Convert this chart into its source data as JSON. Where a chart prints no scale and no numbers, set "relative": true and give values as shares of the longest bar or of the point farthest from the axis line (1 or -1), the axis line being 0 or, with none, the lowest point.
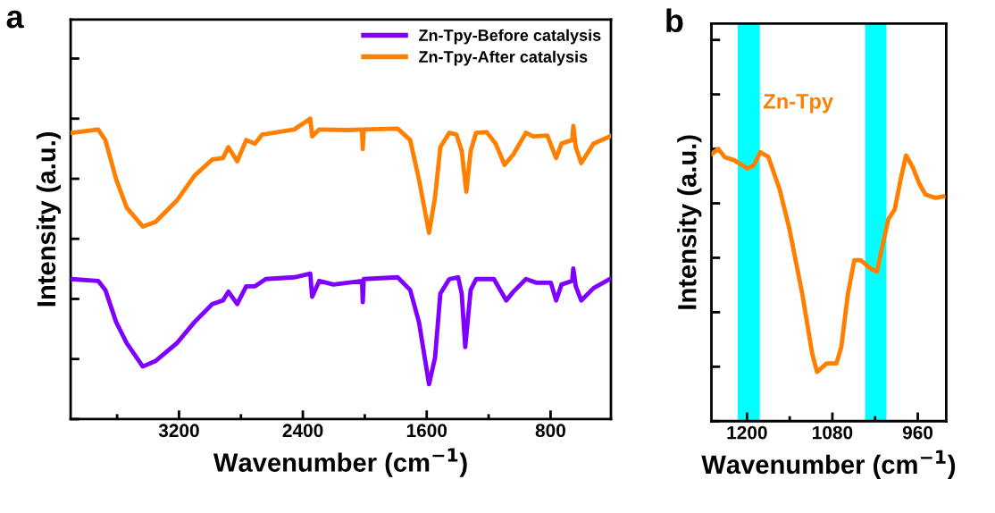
{
  "chart_data": [
    {
      "type": "line",
      "title": "a",
      "xlabel": "Wavenumber (cm$^{−1}$)",
      "ylabel": "Intensity (a.u.)",
      "relative": true,
      "legend": "top right",
      "tick_labels": "x",
      "grid": false,
      "marker": "none",
      "line_style": "solid",
      "xlim": [
        3900,
        410
      ],
      "xticks": [
        {
          "value": 3600,
          "label": null
        },
        3200,
        {
          "value": 2800,
          "label": null
        },
        2400,
        {
          "value": 2000,
          "label": null
        },
        1600,
        {
          "value": 1200,
          "label": null
        },
        800
      ],
      "series": [
        {
          "name": "Zn-Tpy-Before catalysis",
          "color": "#7f00ff",
          "x": [
            3894,
            3722,
            3676,
            3606,
            3537,
            3434,
            3353,
            3215,
            3100,
            2985,
            2916,
            2881,
            2824,
            2766,
            2709,
            2640,
            2456,
            2352,
            2340,
            2294,
            2202,
            2018,
            2013,
            2007,
            1788,
            1707,
            1650,
            1585,
            1546,
            1512,
            1454,
            1397,
            1374,
            1351,
            1316,
            1281,
            1166,
            1086,
            1040,
            959,
            890,
            798,
            764,
            729,
            660,
            653,
            637,
            602,
            522,
            418
          ],
          "values": [
            0.466,
            0.46,
            0.43,
            0.323,
            0.252,
            0.175,
            0.193,
            0.252,
            0.323,
            0.383,
            0.395,
            0.424,
            0.383,
            0.442,
            0.442,
            0.466,
            0.472,
            0.484,
            0.407,
            0.46,
            0.448,
            0.46,
            0.389,
            0.466,
            0.472,
            0.43,
            0.323,
            0.116,
            0.205,
            0.418,
            0.466,
            0.472,
            0.418,
            0.24,
            0.43,
            0.466,
            0.466,
            0.395,
            0.424,
            0.466,
            0.454,
            0.454,
            0.395,
            0.448,
            0.46,
            0.501,
            0.442,
            0.395,
            0.436,
            0.466
          ]
        },
        {
          "name": "Zn-Tpy-After catalysis",
          "color": "#ff8000",
          "x": [
            3894,
            3722,
            3676,
            3606,
            3537,
            3434,
            3353,
            3215,
            3100,
            2985,
            2916,
            2881,
            2824,
            2766,
            2709,
            2663,
            2456,
            2352,
            2340,
            2294,
            2110,
            2018,
            2013,
            2007,
            1788,
            1707,
            1650,
            1585,
            1546,
            1512,
            1454,
            1408,
            1374,
            1344,
            1316,
            1281,
            1212,
            1155,
            1097,
            1040,
            959,
            913,
            821,
            764,
            729,
            660,
            653,
            637,
            602,
            522,
            418
          ],
          "values": [
            0.953,
            0.964,
            0.929,
            0.798,
            0.703,
            0.641,
            0.656,
            0.727,
            0.81,
            0.864,
            0.869,
            0.905,
            0.858,
            0.929,
            0.917,
            0.947,
            0.964,
            1.0,
            0.941,
            0.964,
            0.962,
            0.964,
            0.899,
            0.964,
            0.967,
            0.929,
            0.798,
            0.62,
            0.739,
            0.905,
            0.953,
            0.947,
            0.893,
            0.757,
            0.893,
            0.953,
            0.955,
            0.917,
            0.846,
            0.881,
            0.953,
            0.941,
            0.944,
            0.869,
            0.917,
            0.929,
            0.976,
            0.905,
            0.852,
            0.917,
            0.941
          ]
        }
      ]
    },
    {
      "type": "line",
      "title": "b",
      "xlabel": "Wavenumber (cm$^{−1}$)",
      "ylabel": "Intensity (a.u.)",
      "relative": true,
      "legend": false,
      "tick_labels": "x",
      "grid": false,
      "marker": "none",
      "line_style": "solid",
      "xlim": [
        1250,
        920
      ],
      "xticks": [
        1200,
        {
          "value": 1140,
          "label": null
        },
        1080,
        {
          "value": 1020,
          "label": null
        },
        960
      ],
      "bands": [
        {
          "axis": "x",
          "from": 1213,
          "to": 1182,
          "color": "#00ffff"
        },
        {
          "axis": "x",
          "from": 1034,
          "to": 1004,
          "color": "#00ffff"
        }
      ],
      "series": [
        {
          "name": "Zn-Tpy",
          "color": "#ff8000",
          "x": [
            1249,
            1240.5,
            1231.4,
            1217.7,
            1199.5,
            1190.4,
            1181.3,
            1169.9,
            1154,
            1140.3,
            1122.1,
            1108.4,
            1101.6,
            1088,
            1074.3,
            1067.5,
            1058.4,
            1049.3,
            1040.2,
            1026.5,
            1017.4,
            1010.6,
            1001.5,
            992.4,
            983.3,
            976.4,
            967.3,
            958.2,
            949.1,
            935.4,
            924.1
          ],
          "values": [
            0.982,
            1.0,
            0.97,
            0.958,
            0.928,
            0.94,
            0.988,
            0.97,
            0.85,
            0.705,
            0.464,
            0.248,
            0.181,
            0.212,
            0.212,
            0.272,
            0.464,
            0.591,
            0.591,
            0.561,
            0.549,
            0.633,
            0.741,
            0.778,
            0.898,
            0.976,
            0.934,
            0.874,
            0.832,
            0.82,
            0.825
          ]
        }
      ]
    }
  ]
}
